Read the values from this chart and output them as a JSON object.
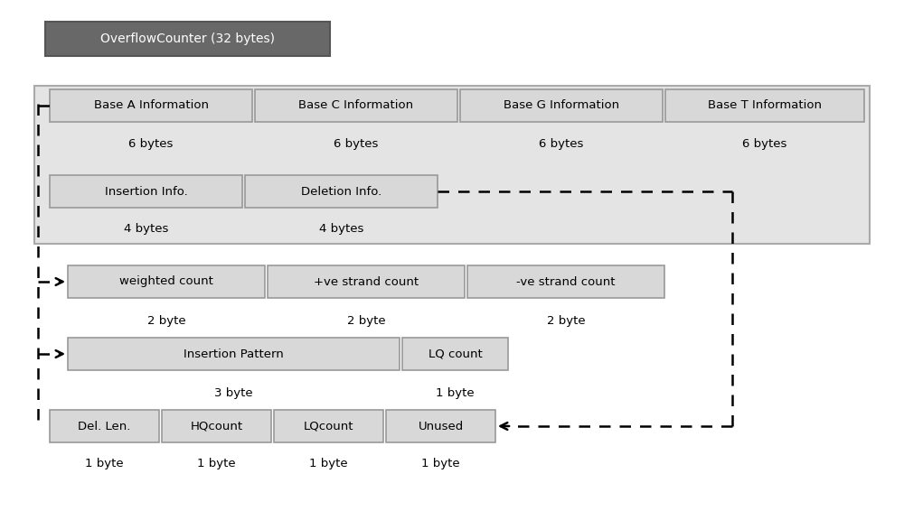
{
  "title": "OverflowCounter (32 bytes)",
  "row1_labels": [
    "Base A Information",
    "Base C Information",
    "Base G Information",
    "Base T Information"
  ],
  "row1_bytes": [
    "6 bytes",
    "6 bytes",
    "6 bytes",
    "6 bytes"
  ],
  "row2_labels": [
    "Insertion Info.",
    "Deletion Info."
  ],
  "row2_bytes": [
    "4 bytes",
    "4 bytes"
  ],
  "row3_labels": [
    "weighted count",
    "+ve strand count",
    "-ve strand count"
  ],
  "row3_bytes": [
    "2 byte",
    "2 byte",
    "2 byte"
  ],
  "row4_labels": [
    "Insertion Pattern",
    "LQ count"
  ],
  "row4_bytes": [
    "3 byte",
    "1 byte"
  ],
  "row5_labels": [
    "Del. Len.",
    "HQcount",
    "LQcount",
    "Unused"
  ],
  "row5_bytes": [
    "1 byte",
    "1 byte",
    "1 byte",
    "1 byte"
  ],
  "outer_bg": "#e4e4e4",
  "inner_box_bg": "#d8d8d8",
  "header_bg": "#686868",
  "box_edge": "#999999",
  "outer_edge": "#aaaaaa"
}
